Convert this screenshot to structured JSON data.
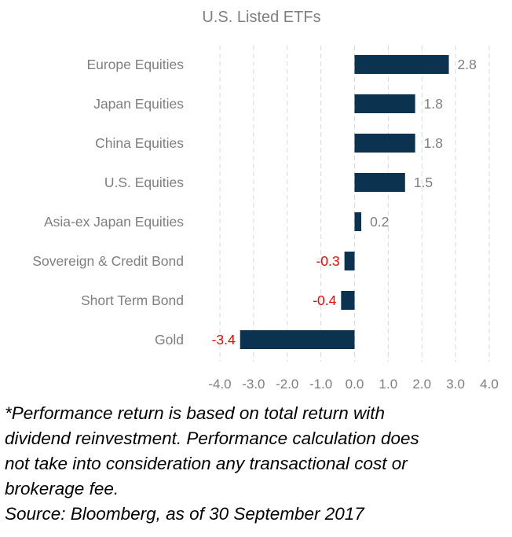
{
  "chart_data": {
    "type": "bar",
    "orientation": "horizontal",
    "title": "U.S. Listed ETFs",
    "categories": [
      "Europe Equities",
      "Japan Equities",
      "China Equities",
      "U.S. Equities",
      "Asia-ex Japan Equities",
      "Sovereign & Credit Bond",
      "Short Term Bond",
      "Gold"
    ],
    "values": [
      2.8,
      1.8,
      1.8,
      1.5,
      0.2,
      -0.3,
      -0.4,
      -3.4
    ],
    "data_labels": [
      "2.8",
      "1.8",
      "1.8",
      "1.5",
      "0.2",
      "-0.3",
      "-0.4",
      "-3.4"
    ],
    "xlim": [
      -4.0,
      4.0
    ],
    "xticks": [
      "-4.0",
      "-3.0",
      "-2.0",
      "-1.0",
      "0.0",
      "1.0",
      "2.0",
      "3.0",
      "4.0"
    ],
    "grid": "vertical dashed",
    "legend": "none",
    "colors": {
      "bar": "#0b3350",
      "positive_label": "#7f7f7f",
      "negative_label": "#ff0000",
      "text": "#7f7f7f",
      "grid": "#d9d9d9"
    }
  },
  "footnote": {
    "lines": [
      "*Performance return is based on total return with",
      "dividend reinvestment. Performance calculation does",
      "not take into consideration any transactional cost or",
      "brokerage fee.",
      "Source: Bloomberg, as of 30 September 2017"
    ]
  }
}
